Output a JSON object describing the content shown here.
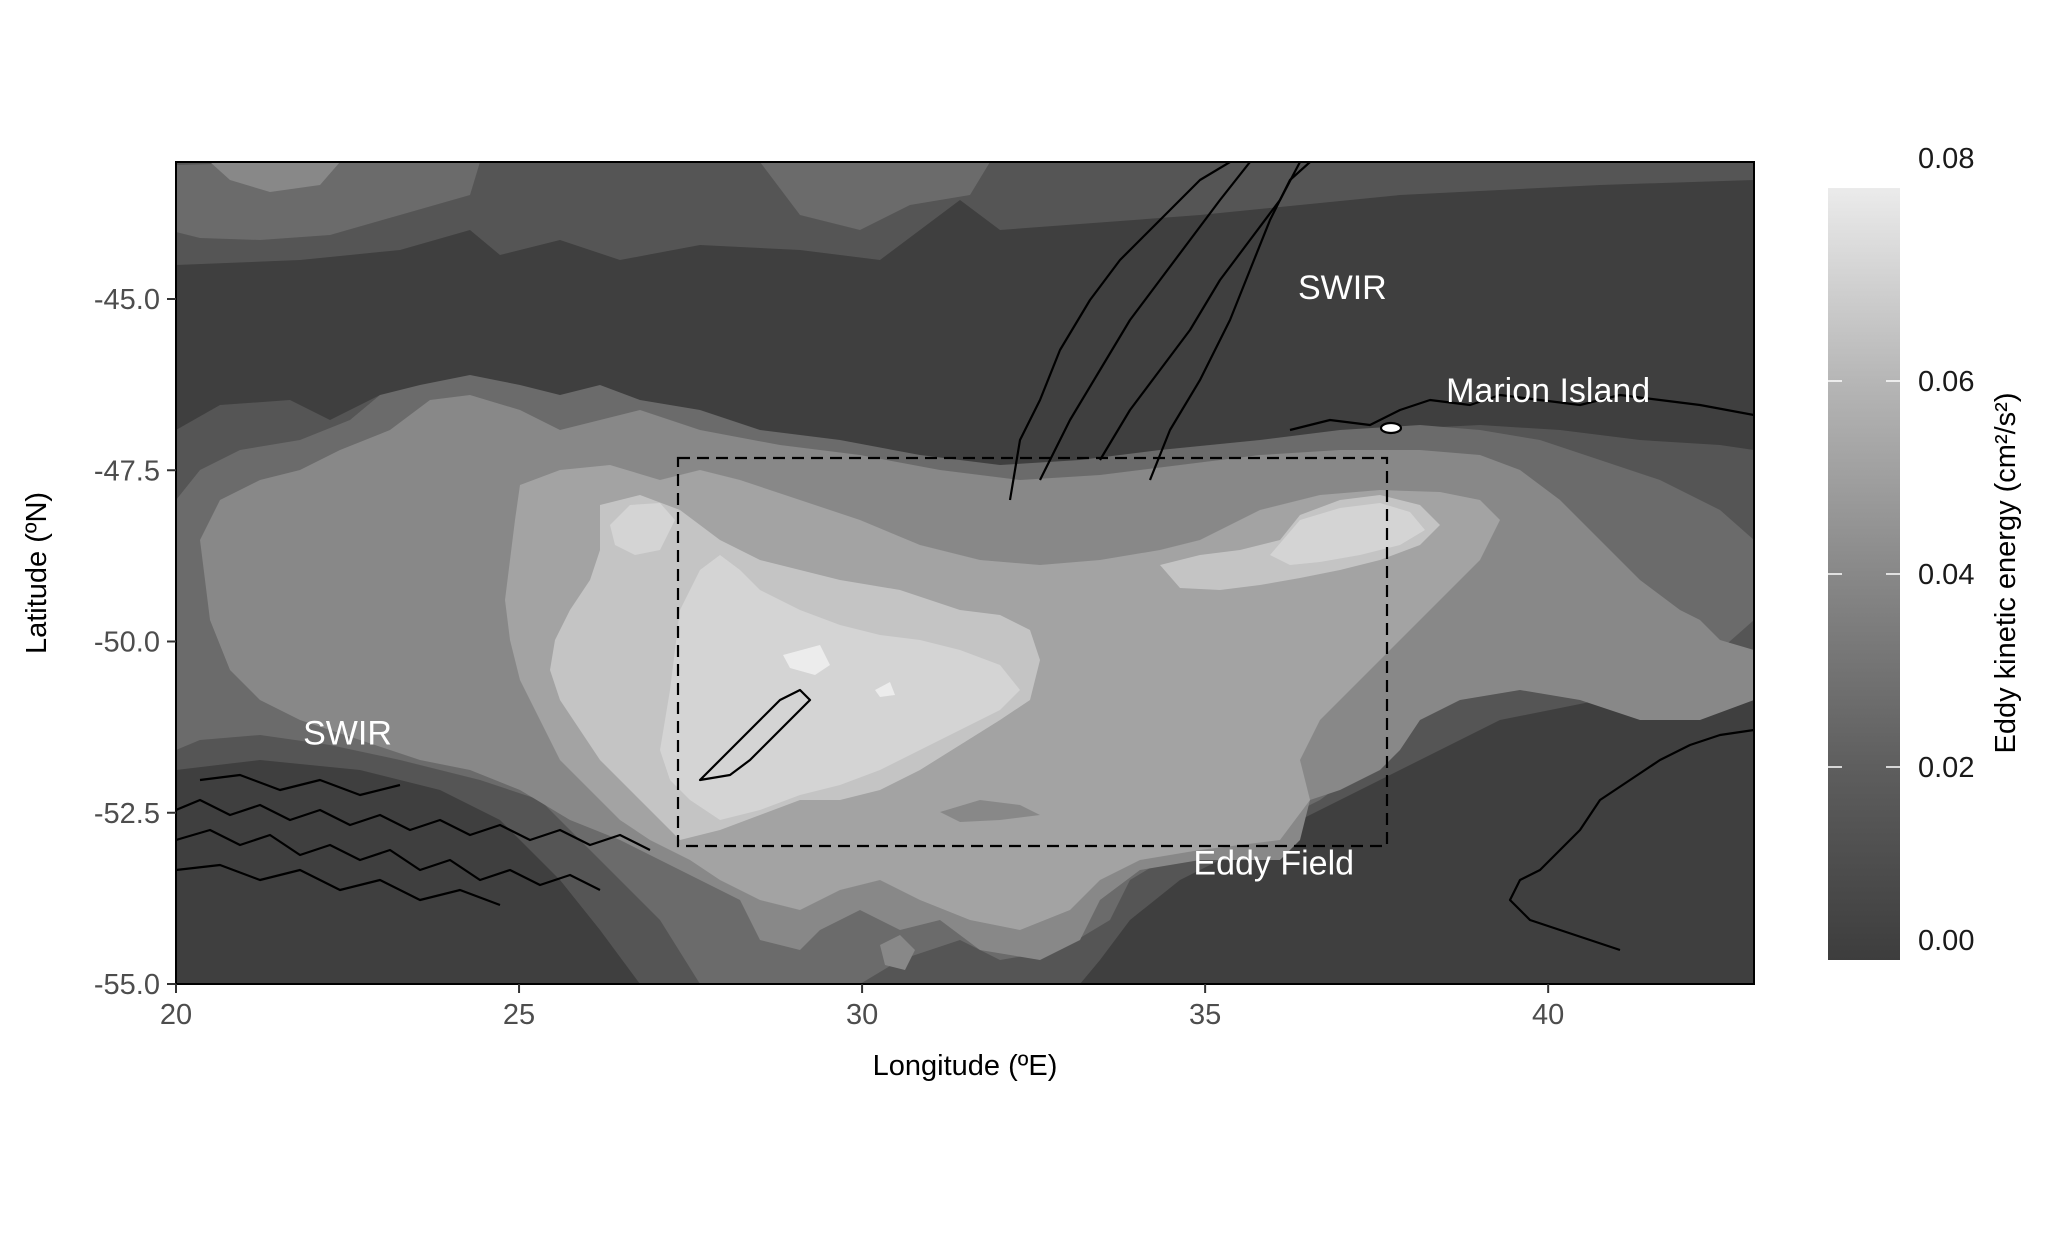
{
  "chart_data": {
    "type": "heatmap",
    "xlabel": "Longitude (ºE)",
    "ylabel": "Latitude (ºN)",
    "xlim": [
      20,
      43
    ],
    "ylim": [
      -55,
      -43
    ],
    "x_ticks": [
      20,
      25,
      30,
      35,
      40
    ],
    "x_tick_labels": [
      "20",
      "25",
      "30",
      "35",
      "40"
    ],
    "y_ticks": [
      -45,
      -47.5,
      -50,
      -52.5,
      -55
    ],
    "y_tick_labels": [
      "-45.0",
      "-47.5",
      "-50.0",
      "-52.5",
      "-55.0"
    ],
    "colorbar": {
      "title": "Eddy kinetic energy (cm²/s²)",
      "min": 0,
      "max": 0.08,
      "ticks": [
        0,
        0.02,
        0.04,
        0.06,
        0.08
      ],
      "tick_labels": [
        "0.00",
        "0.02",
        "0.04",
        "0.06",
        "0.08"
      ],
      "color_low": "#3d3d3d",
      "color_high": "#ebebeb"
    },
    "levels": [
      {
        "min": 0.0,
        "max": 0.01,
        "color": "#3f3f3f"
      },
      {
        "min": 0.01,
        "max": 0.02,
        "color": "#555555"
      },
      {
        "min": 0.02,
        "max": 0.03,
        "color": "#6b6b6b"
      },
      {
        "min": 0.03,
        "max": 0.04,
        "color": "#888888"
      },
      {
        "min": 0.04,
        "max": 0.05,
        "color": "#a3a3a3"
      },
      {
        "min": 0.05,
        "max": 0.06,
        "color": "#c4c4c4"
      },
      {
        "min": 0.06,
        "max": 0.07,
        "color": "#d4d4d4"
      },
      {
        "min": 0.07,
        "max": 0.08,
        "color": "#ececec"
      }
    ],
    "study_box": {
      "lon_min": 27.3,
      "lon_max": 37.7,
      "lat_min": -53.0,
      "lat_max": -47.3
    },
    "annotations": [
      {
        "text": "SWIR",
        "lon": 22.5,
        "lat": -51.5
      },
      {
        "text": "SWIR",
        "lon": 37.0,
        "lat": -45.0
      },
      {
        "text": "Marion Island",
        "lon": 40.0,
        "lat": -46.5
      },
      {
        "text": "Eddy Field",
        "lon": 36.0,
        "lat": -53.4
      }
    ]
  }
}
